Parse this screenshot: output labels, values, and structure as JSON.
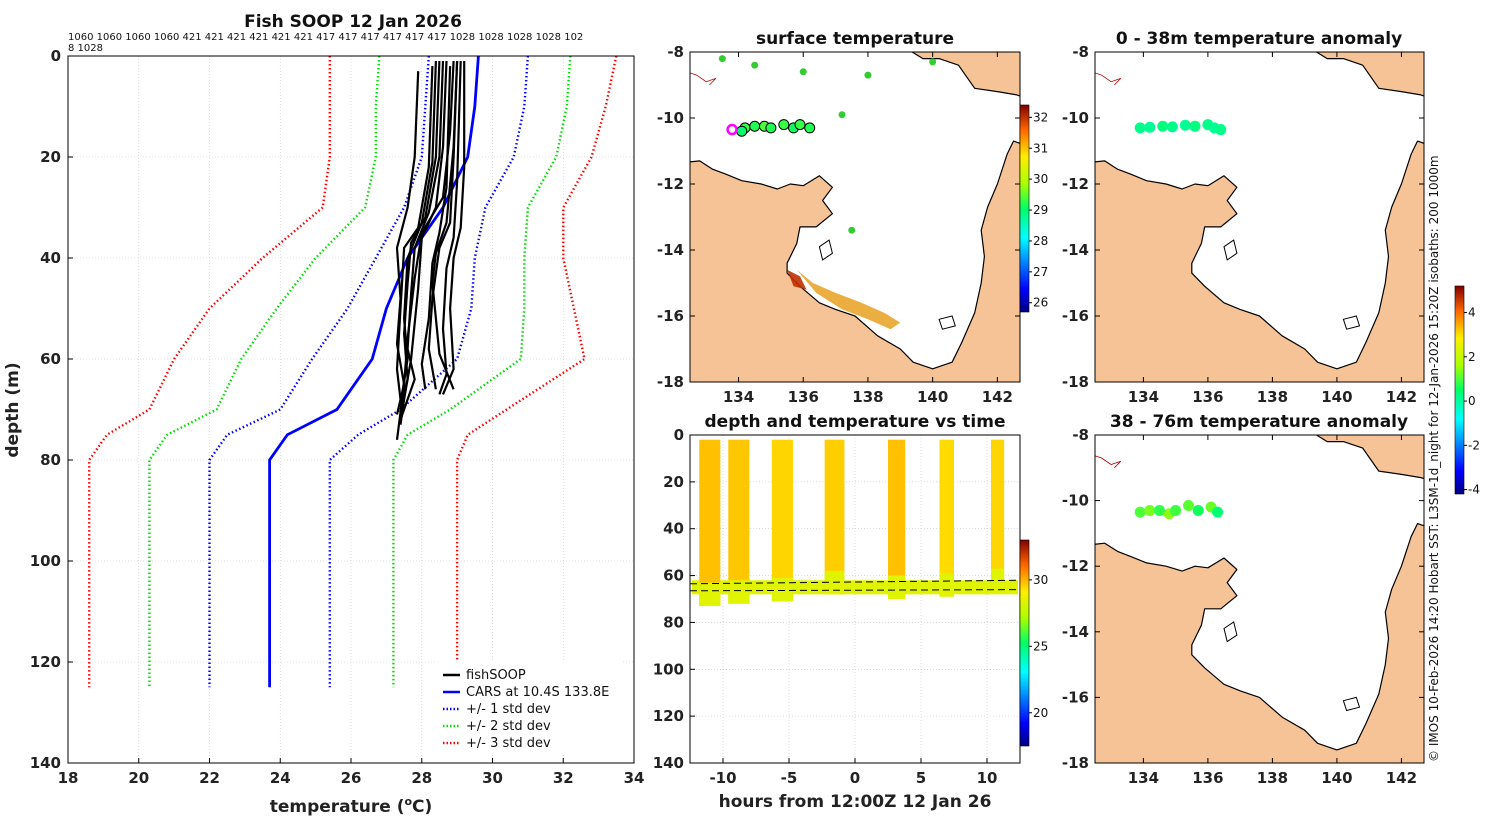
{
  "figure": {
    "title": "Fish SOOP 12 Jan 2026",
    "copyright": "© IMOS 10-Feb-2026 14:20 Hobart SST: L3SM-1d_night for 12-Jan-2026 15:20Z isobaths: 200  1000m",
    "colors": {
      "land": "#f6c396",
      "coast": "#000000",
      "grid": "#c8c8c8",
      "frame": "#000000"
    }
  },
  "chart_data": [
    {
      "id": "profile",
      "type": "line",
      "title": "Fish SOOP 12 Jan 2026",
      "xlabel": "temperature (°C)",
      "xlabel_main": "temperature (",
      "xlabel_unit_sup": "o",
      "xlabel_unit": "C)",
      "ylabel": "depth (m)",
      "xlim": [
        18,
        34
      ],
      "ylim": [
        0,
        140
      ],
      "y_reversed": true,
      "xticks": [
        18,
        20,
        22,
        24,
        26,
        28,
        30,
        32,
        34
      ],
      "yticks": [
        0,
        20,
        40,
        60,
        80,
        100,
        120,
        140
      ],
      "top_counts_line1": "1060 1060 1060 1060 421 421 421 421 421 421 417 417 417 417 417 417 1028 1028 1028 1028 102",
      "top_counts_line2": "8 1028",
      "legend": [
        {
          "label": "fishSOOP",
          "color": "#000000",
          "style": "solid"
        },
        {
          "label": "CARS at 10.4S 133.8E",
          "color": "#0000ff",
          "style": "solid"
        },
        {
          "label": "+/- 1 std dev",
          "color": "#0000ff",
          "style": "dotted"
        },
        {
          "label": "+/- 2 std dev",
          "color": "#00dd00",
          "style": "dotted"
        },
        {
          "label": "+/- 3 std dev",
          "color": "#ff0000",
          "style": "dotted"
        }
      ],
      "depths": [
        0,
        10,
        20,
        30,
        40,
        50,
        60,
        70,
        75,
        80,
        90,
        100,
        110,
        120,
        125
      ],
      "series": [
        {
          "name": "CARS mean",
          "color": "#0000ff",
          "style": "solid",
          "values": [
            29.6,
            29.5,
            29.3,
            28.6,
            27.6,
            27.0,
            26.6,
            25.6,
            24.2,
            23.7,
            23.7,
            23.7,
            23.7,
            23.7,
            23.7
          ]
        },
        {
          "name": "-1 std",
          "color": "#0000ff",
          "style": "dotted",
          "values": [
            28.2,
            28.1,
            28.0,
            27.5,
            26.7,
            25.9,
            24.9,
            24.0,
            22.5,
            22.0,
            22.0,
            22.0,
            22.0,
            22.0,
            22.0
          ]
        },
        {
          "name": "+1 std",
          "color": "#0000ff",
          "style": "dotted",
          "values": [
            31.0,
            30.9,
            30.6,
            29.8,
            29.5,
            29.4,
            29.0,
            27.4,
            26.2,
            25.4,
            25.4,
            25.4,
            25.4,
            25.4,
            25.4
          ]
        },
        {
          "name": "-2 std",
          "color": "#00dd00",
          "style": "dotted",
          "values": [
            26.8,
            26.7,
            26.7,
            26.4,
            25.0,
            23.9,
            22.9,
            22.2,
            20.8,
            20.3,
            20.3,
            20.3,
            20.3,
            20.3,
            20.3
          ]
        },
        {
          "name": "+2 std",
          "color": "#00dd00",
          "style": "dotted",
          "values": [
            32.2,
            32.1,
            31.8,
            31.0,
            30.9,
            30.9,
            30.8,
            28.8,
            27.6,
            27.2,
            27.2,
            27.2,
            27.2,
            27.2,
            27.2
          ]
        },
        {
          "name": "-3 std",
          "color": "#ff0000",
          "style": "dotted",
          "values": [
            25.4,
            25.4,
            25.4,
            25.2,
            23.5,
            22.0,
            21.0,
            20.3,
            19.1,
            18.6,
            18.6,
            18.6,
            18.6,
            18.6,
            18.6
          ]
        },
        {
          "name": "+3 std",
          "color": "#ff0000",
          "style": "dotted",
          "values": [
            33.5,
            33.2,
            32.8,
            32.0,
            32.0,
            32.3,
            32.6,
            30.4,
            29.3,
            29.0,
            29.0,
            29.0,
            29.0,
            29.0,
            29.0
          ]
        }
      ],
      "fishsoop_profiles": [
        {
          "name": "profile 1",
          "points": [
            [
              28.5,
              1
            ],
            [
              28.4,
              20
            ],
            [
              28.1,
              32
            ],
            [
              27.7,
              37
            ],
            [
              27.6,
              45
            ],
            [
              27.5,
              55
            ],
            [
              27.6,
              64
            ],
            [
              27.4,
              70
            ]
          ]
        },
        {
          "name": "profile 2",
          "points": [
            [
              29.0,
              1
            ],
            [
              28.9,
              20
            ],
            [
              28.8,
              33
            ],
            [
              28.5,
              38
            ],
            [
              28.3,
              48
            ],
            [
              28.2,
              58
            ],
            [
              28.4,
              66
            ]
          ]
        },
        {
          "name": "profile 3",
          "points": [
            [
              28.7,
              1
            ],
            [
              28.6,
              18
            ],
            [
              28.4,
              30
            ],
            [
              28.0,
              36
            ],
            [
              27.9,
              46
            ],
            [
              27.7,
              60
            ],
            [
              27.5,
              68
            ],
            [
              27.4,
              73
            ]
          ]
        },
        {
          "name": "profile 4",
          "points": [
            [
              29.2,
              1
            ],
            [
              29.2,
              22
            ],
            [
              29.1,
              34
            ],
            [
              28.9,
              40
            ],
            [
              28.8,
              50
            ],
            [
              28.9,
              62
            ],
            [
              28.6,
              67
            ]
          ]
        },
        {
          "name": "profile 5",
          "points": [
            [
              28.9,
              1
            ],
            [
              28.8,
              15
            ],
            [
              28.6,
              28
            ],
            [
              28.0,
              35
            ],
            [
              27.8,
              44
            ],
            [
              27.6,
              56
            ],
            [
              27.5,
              65
            ],
            [
              27.3,
              76
            ]
          ]
        },
        {
          "name": "profile 6",
          "points": [
            [
              28.3,
              2
            ],
            [
              28.2,
              22
            ],
            [
              27.9,
              34
            ],
            [
              27.5,
              38
            ],
            [
              27.4,
              50
            ],
            [
              27.3,
              62
            ],
            [
              27.4,
              68
            ]
          ]
        },
        {
          "name": "profile 7",
          "points": [
            [
              29.1,
              1
            ],
            [
              29.0,
              25
            ],
            [
              28.9,
              36
            ],
            [
              28.7,
              42
            ],
            [
              28.6,
              54
            ],
            [
              28.7,
              63
            ],
            [
              28.5,
              67
            ]
          ]
        },
        {
          "name": "profile 8",
          "points": [
            [
              28.6,
              1
            ],
            [
              28.5,
              20
            ],
            [
              28.2,
              31
            ],
            [
              27.8,
              38
            ],
            [
              27.7,
              47
            ],
            [
              27.6,
              58
            ],
            [
              27.8,
              64
            ],
            [
              27.4,
              72
            ]
          ]
        },
        {
          "name": "profile 9",
          "points": [
            [
              28.8,
              2
            ],
            [
              28.7,
              26
            ],
            [
              28.5,
              35
            ],
            [
              28.3,
              41
            ],
            [
              28.2,
              52
            ],
            [
              28.0,
              61
            ],
            [
              28.1,
              66
            ]
          ]
        },
        {
          "name": "profile 10",
          "points": [
            [
              27.9,
              3
            ],
            [
              27.8,
              20
            ],
            [
              27.6,
              30
            ],
            [
              27.3,
              38
            ],
            [
              27.4,
              48
            ],
            [
              27.3,
              57
            ],
            [
              27.5,
              65
            ],
            [
              27.3,
              71
            ]
          ]
        },
        {
          "name": "profile 11",
          "points": [
            [
              29.0,
              1
            ],
            [
              28.9,
              18
            ],
            [
              28.7,
              33
            ],
            [
              28.4,
              39
            ],
            [
              28.3,
              45
            ],
            [
              28.5,
              59
            ],
            [
              28.9,
              66
            ]
          ]
        },
        {
          "name": "profile 12",
          "points": [
            [
              28.4,
              1
            ],
            [
              28.3,
              21
            ],
            [
              28.0,
              33
            ],
            [
              27.6,
              40
            ],
            [
              27.5,
              52
            ],
            [
              27.6,
              60
            ],
            [
              27.4,
              69
            ]
          ]
        }
      ]
    },
    {
      "id": "sst_map",
      "type": "scatter",
      "title": "surface temperature",
      "xlim": [
        132.5,
        142.7
      ],
      "ylim": [
        -18,
        -8
      ],
      "xticks": [
        134,
        136,
        138,
        140,
        142
      ],
      "yticks": [
        -8,
        -10,
        -12,
        -14,
        -16,
        -18
      ],
      "colorbar": {
        "min": 25.7,
        "max": 32.4,
        "ticks": [
          26,
          27,
          28,
          29,
          30,
          31,
          32
        ]
      },
      "fishsoop_sst_points": [
        {
          "lon": 134.2,
          "lat": -10.3,
          "value": 29.3
        },
        {
          "lon": 134.5,
          "lat": -10.25,
          "value": 29.2
        },
        {
          "lon": 134.8,
          "lat": -10.25,
          "value": 29.4
        },
        {
          "lon": 135.0,
          "lat": -10.3,
          "value": 29.2
        },
        {
          "lon": 135.4,
          "lat": -10.2,
          "value": 29.3
        },
        {
          "lon": 135.7,
          "lat": -10.3,
          "value": 29.1
        },
        {
          "lon": 135.9,
          "lat": -10.2,
          "value": 29.3
        },
        {
          "lon": 136.2,
          "lat": -10.3,
          "value": 29.2
        },
        {
          "lon": 134.1,
          "lat": -10.4,
          "value": 29.0
        }
      ],
      "start_marker": {
        "lon": 133.8,
        "lat": -10.35,
        "color": "#ff00ff"
      }
    },
    {
      "id": "anomaly_0_38",
      "type": "scatter",
      "title": "0 - 38m temperature anomaly",
      "xlim": [
        132.5,
        142.7
      ],
      "ylim": [
        -18,
        -8
      ],
      "xticks": [
        134,
        136,
        138,
        140,
        142
      ],
      "yticks": [
        -8,
        -10,
        -12,
        -14,
        -16,
        -18
      ],
      "points": [
        {
          "lon": 133.9,
          "lat": -10.3,
          "value": 0.2
        },
        {
          "lon": 134.2,
          "lat": -10.28,
          "value": 0.1
        },
        {
          "lon": 134.6,
          "lat": -10.25,
          "value": 0.3
        },
        {
          "lon": 134.9,
          "lat": -10.27,
          "value": 0.2
        },
        {
          "lon": 135.3,
          "lat": -10.22,
          "value": 0.1
        },
        {
          "lon": 135.6,
          "lat": -10.25,
          "value": 0.3
        },
        {
          "lon": 136.0,
          "lat": -10.2,
          "value": 0.2
        },
        {
          "lon": 136.2,
          "lat": -10.3,
          "value": 0.1
        },
        {
          "lon": 136.4,
          "lat": -10.35,
          "value": 0.2
        }
      ]
    },
    {
      "id": "anomaly_38_76",
      "type": "scatter",
      "title": "38 - 76m temperature anomaly",
      "xlim": [
        132.5,
        142.7
      ],
      "ylim": [
        -18,
        -8
      ],
      "xticks": [
        134,
        136,
        138,
        140,
        142
      ],
      "yticks": [
        -8,
        -10,
        -12,
        -14,
        -16,
        -18
      ],
      "colorbar": {
        "min": -4.2,
        "max": 5.2,
        "ticks": [
          -4,
          -2,
          0,
          2,
          4
        ]
      },
      "points": [
        {
          "lon": 133.9,
          "lat": -10.35,
          "value": 1.0
        },
        {
          "lon": 134.2,
          "lat": -10.3,
          "value": 1.3
        },
        {
          "lon": 134.5,
          "lat": -10.3,
          "value": 0.8
        },
        {
          "lon": 134.8,
          "lat": -10.4,
          "value": 1.4
        },
        {
          "lon": 135.0,
          "lat": -10.3,
          "value": 0.9
        },
        {
          "lon": 135.4,
          "lat": -10.15,
          "value": 1.1
        },
        {
          "lon": 135.7,
          "lat": -10.3,
          "value": 0.6
        },
        {
          "lon": 136.1,
          "lat": -10.2,
          "value": 1.2
        },
        {
          "lon": 136.3,
          "lat": -10.35,
          "value": 0.4
        }
      ]
    },
    {
      "id": "depth_time",
      "type": "scatter",
      "title": "depth and temperature vs time",
      "xlabel": "hours from 12:00Z 12 Jan 26",
      "xlim": [
        -12.5,
        12.5
      ],
      "ylim": [
        0,
        140
      ],
      "y_reversed": true,
      "xticks": [
        -10,
        -5,
        0,
        5,
        10
      ],
      "yticks": [
        0,
        20,
        40,
        60,
        80,
        100,
        120,
        140
      ],
      "colorbar": {
        "min": 17.5,
        "max": 33,
        "ticks": [
          20,
          25,
          30
        ]
      },
      "casts": [
        {
          "start": -11.8,
          "end": -10.2,
          "bottom": 73,
          "surface_temp": 29.8
        },
        {
          "start": -9.6,
          "end": -8.0,
          "bottom": 72,
          "surface_temp": 29.7
        },
        {
          "start": -6.3,
          "end": -4.7,
          "bottom": 71,
          "surface_temp": 29.5
        },
        {
          "start": -2.3,
          "end": -0.8,
          "bottom": 68,
          "surface_temp": 29.6
        },
        {
          "start": 2.5,
          "end": 3.8,
          "bottom": 70,
          "surface_temp": 29.8
        },
        {
          "start": 6.4,
          "end": 7.5,
          "bottom": 69,
          "surface_temp": 29.4
        },
        {
          "start": 10.3,
          "end": 11.3,
          "bottom": 67,
          "surface_temp": 29.5
        }
      ],
      "bottom_trace": {
        "depth_mean": 65,
        "temp": 28.4
      },
      "dashed_lines": [
        {
          "y_start": 63.5,
          "y_end": 62.0
        },
        {
          "y_start": 66.5,
          "y_end": 66.0
        }
      ]
    }
  ]
}
